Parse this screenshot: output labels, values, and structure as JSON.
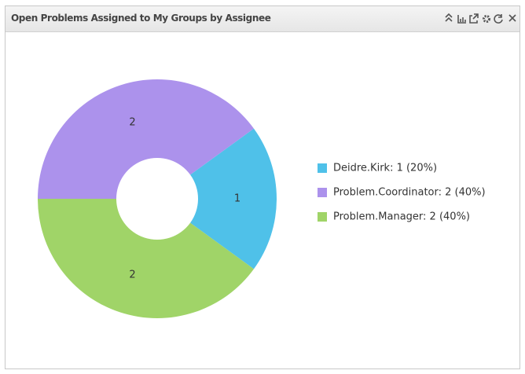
{
  "chart_data": {
    "type": "pie",
    "title": "Open Problems Assigned to My Groups by Assignee",
    "categories": [
      "Deidre.Kirk: 1 (20%)",
      "Problem.Coordinator: 2 (40%)",
      "Problem.Manager: 2 (40%)"
    ],
    "values": [
      1,
      2,
      2
    ],
    "colors": [
      "#4fc1e9",
      "#ac92ec",
      "#a0d468"
    ]
  }
}
